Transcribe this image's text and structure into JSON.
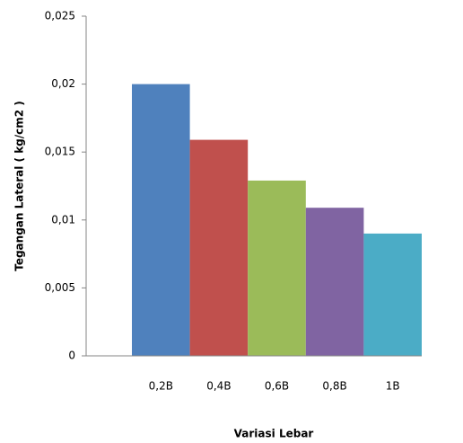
{
  "chart_data": {
    "type": "bar",
    "x_label": "Variasi Lebar",
    "y_label": "Tegangan Lateral ( kg/cm2 )",
    "categories": [
      "0,2B",
      "0,4B",
      "0,6B",
      "0,8B",
      "1B"
    ],
    "values": [
      0.02,
      0.0159,
      0.0129,
      0.0109,
      0.009
    ],
    "colors": [
      "#4f81bd",
      "#c0504d",
      "#9bbb59",
      "#8064a2",
      "#4bacc6"
    ],
    "ylim": [
      0,
      0.025
    ],
    "yticks": [
      0,
      {
        "value": 0.005,
        "label": "0,005"
      },
      {
        "value": 0.01,
        "label": "0,01"
      },
      {
        "value": 0.015,
        "label": "0,015"
      },
      {
        "value": 0.02,
        "label": "0,02"
      },
      {
        "value": 0.025,
        "label": "0,025"
      }
    ]
  }
}
